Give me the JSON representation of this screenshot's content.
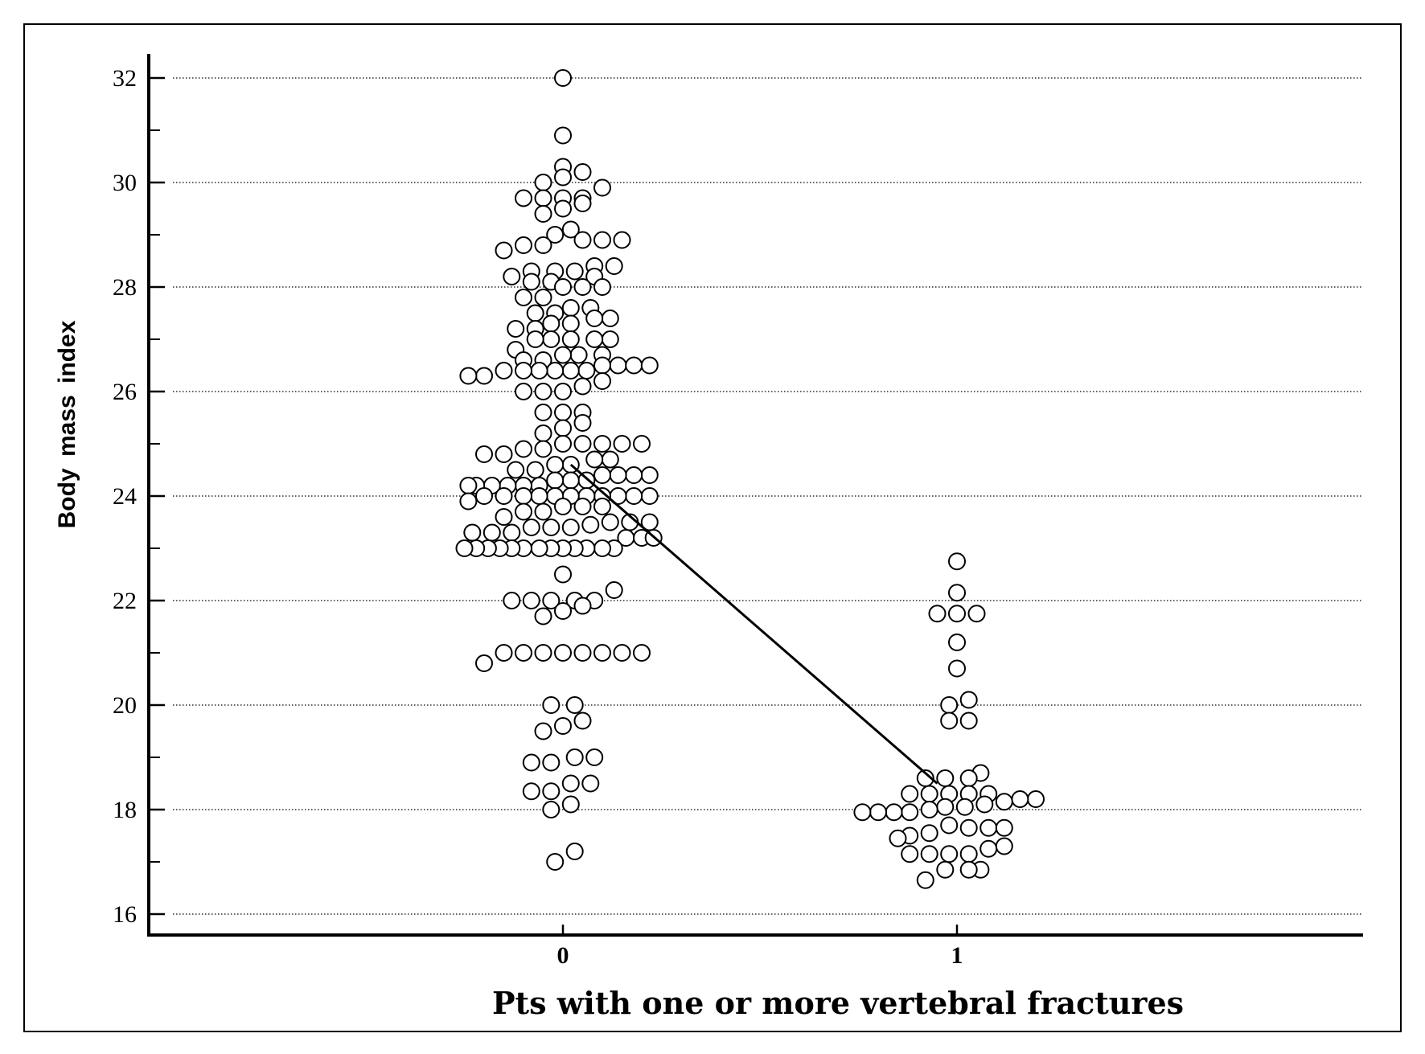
{
  "chart_data": {
    "type": "scatter",
    "title": "",
    "xlabel": "Pts with one or more vertebral fractures",
    "ylabel": "Body mass index",
    "categories": [
      "0",
      "1"
    ],
    "ylim": [
      16,
      32
    ],
    "y_ticks": [
      16,
      18,
      20,
      22,
      24,
      26,
      28,
      30,
      32
    ],
    "grid": "horizontal dotted",
    "series": [
      {
        "category": "0",
        "points": [
          {
            "x": 0,
            "y": 32.0
          },
          {
            "x": 0,
            "y": 30.9
          },
          {
            "x": 0,
            "y": 30.3
          },
          {
            "x": 0,
            "y": 30.1
          },
          {
            "x": 0.05,
            "y": 30.2
          },
          {
            "x": -0.05,
            "y": 30.0
          },
          {
            "x": 0.1,
            "y": 29.9
          },
          {
            "x": -0.1,
            "y": 29.7
          },
          {
            "x": -0.05,
            "y": 29.7
          },
          {
            "x": 0,
            "y": 29.7
          },
          {
            "x": 0.05,
            "y": 29.7
          },
          {
            "x": 0,
            "y": 29.5
          },
          {
            "x": 0.05,
            "y": 29.6
          },
          {
            "x": -0.05,
            "y": 29.4
          },
          {
            "x": 0.02,
            "y": 29.1
          },
          {
            "x": -0.02,
            "y": 29.0
          },
          {
            "x": 0.05,
            "y": 28.9
          },
          {
            "x": 0.1,
            "y": 28.9
          },
          {
            "x": 0.15,
            "y": 28.9
          },
          {
            "x": -0.1,
            "y": 28.8
          },
          {
            "x": -0.05,
            "y": 28.8
          },
          {
            "x": -0.15,
            "y": 28.7
          },
          {
            "x": 0.08,
            "y": 28.4
          },
          {
            "x": 0.13,
            "y": 28.4
          },
          {
            "x": -0.13,
            "y": 28.2
          },
          {
            "x": -0.08,
            "y": 28.3
          },
          {
            "x": -0.02,
            "y": 28.3
          },
          {
            "x": 0.03,
            "y": 28.3
          },
          {
            "x": 0.08,
            "y": 28.2
          },
          {
            "x": -0.08,
            "y": 28.1
          },
          {
            "x": -0.03,
            "y": 28.1
          },
          {
            "x": 0,
            "y": 28.0
          },
          {
            "x": 0.05,
            "y": 28.0
          },
          {
            "x": 0.1,
            "y": 28.0
          },
          {
            "x": -0.1,
            "y": 27.8
          },
          {
            "x": -0.05,
            "y": 27.8
          },
          {
            "x": 0.02,
            "y": 27.6
          },
          {
            "x": 0.07,
            "y": 27.6
          },
          {
            "x": -0.07,
            "y": 27.5
          },
          {
            "x": -0.02,
            "y": 27.5
          },
          {
            "x": 0.12,
            "y": 27.4
          },
          {
            "x": 0.08,
            "y": 27.4
          },
          {
            "x": 0.02,
            "y": 27.3
          },
          {
            "x": -0.03,
            "y": 27.3
          },
          {
            "x": -0.07,
            "y": 27.2
          },
          {
            "x": -0.12,
            "y": 27.2
          },
          {
            "x": 0.12,
            "y": 27.0
          },
          {
            "x": 0.08,
            "y": 27.0
          },
          {
            "x": 0.02,
            "y": 27.0
          },
          {
            "x": -0.03,
            "y": 27.0
          },
          {
            "x": -0.07,
            "y": 27.0
          },
          {
            "x": -0.12,
            "y": 26.8
          },
          {
            "x": 0.04,
            "y": 26.7
          },
          {
            "x": 0.1,
            "y": 26.7
          },
          {
            "x": 0,
            "y": 26.7
          },
          {
            "x": -0.05,
            "y": 26.6
          },
          {
            "x": -0.1,
            "y": 26.6
          },
          {
            "x": 0.14,
            "y": 26.5
          },
          {
            "x": 0.18,
            "y": 26.5
          },
          {
            "x": 0.22,
            "y": 26.5
          },
          {
            "x": 0.1,
            "y": 26.5
          },
          {
            "x": 0.06,
            "y": 26.4
          },
          {
            "x": 0.02,
            "y": 26.4
          },
          {
            "x": -0.02,
            "y": 26.4
          },
          {
            "x": -0.06,
            "y": 26.4
          },
          {
            "x": -0.1,
            "y": 26.4
          },
          {
            "x": -0.15,
            "y": 26.4
          },
          {
            "x": -0.2,
            "y": 26.3
          },
          {
            "x": -0.24,
            "y": 26.3
          },
          {
            "x": 0.1,
            "y": 26.2
          },
          {
            "x": 0.05,
            "y": 26.1
          },
          {
            "x": 0,
            "y": 26.0
          },
          {
            "x": -0.05,
            "y": 26.0
          },
          {
            "x": -0.1,
            "y": 26.0
          },
          {
            "x": -0.05,
            "y": 25.6
          },
          {
            "x": 0,
            "y": 25.6
          },
          {
            "x": 0.05,
            "y": 25.6
          },
          {
            "x": 0.05,
            "y": 25.4
          },
          {
            "x": 0,
            "y": 25.3
          },
          {
            "x": -0.05,
            "y": 25.2
          },
          {
            "x": 0.1,
            "y": 25.0
          },
          {
            "x": 0.15,
            "y": 25.0
          },
          {
            "x": 0.2,
            "y": 25.0
          },
          {
            "x": 0.05,
            "y": 25.0
          },
          {
            "x": 0,
            "y": 25.0
          },
          {
            "x": -0.05,
            "y": 24.9
          },
          {
            "x": -0.1,
            "y": 24.9
          },
          {
            "x": -0.15,
            "y": 24.8
          },
          {
            "x": -0.2,
            "y": 24.8
          },
          {
            "x": 0.12,
            "y": 24.7
          },
          {
            "x": 0.08,
            "y": 24.7
          },
          {
            "x": 0.02,
            "y": 24.6
          },
          {
            "x": -0.02,
            "y": 24.6
          },
          {
            "x": -0.07,
            "y": 24.5
          },
          {
            "x": -0.12,
            "y": 24.5
          },
          {
            "x": 0.22,
            "y": 24.4
          },
          {
            "x": 0.18,
            "y": 24.4
          },
          {
            "x": 0.14,
            "y": 24.4
          },
          {
            "x": 0.1,
            "y": 24.4
          },
          {
            "x": 0.06,
            "y": 24.3
          },
          {
            "x": 0.02,
            "y": 24.3
          },
          {
            "x": -0.02,
            "y": 24.3
          },
          {
            "x": -0.06,
            "y": 24.2
          },
          {
            "x": -0.1,
            "y": 24.2
          },
          {
            "x": -0.14,
            "y": 24.2
          },
          {
            "x": -0.18,
            "y": 24.2
          },
          {
            "x": -0.22,
            "y": 24.2
          },
          {
            "x": -0.24,
            "y": 24.2
          },
          {
            "x": 0.22,
            "y": 24.0
          },
          {
            "x": 0.18,
            "y": 24.0
          },
          {
            "x": 0.14,
            "y": 24.0
          },
          {
            "x": 0.1,
            "y": 24.0
          },
          {
            "x": 0.06,
            "y": 24.0
          },
          {
            "x": 0.02,
            "y": 24.0
          },
          {
            "x": -0.02,
            "y": 24.0
          },
          {
            "x": -0.06,
            "y": 24.0
          },
          {
            "x": -0.1,
            "y": 24.0
          },
          {
            "x": -0.15,
            "y": 24.0
          },
          {
            "x": -0.2,
            "y": 24.0
          },
          {
            "x": -0.24,
            "y": 23.9
          },
          {
            "x": 0.1,
            "y": 23.8
          },
          {
            "x": 0.05,
            "y": 23.8
          },
          {
            "x": 0,
            "y": 23.8
          },
          {
            "x": -0.05,
            "y": 23.7
          },
          {
            "x": -0.1,
            "y": 23.7
          },
          {
            "x": -0.15,
            "y": 23.6
          },
          {
            "x": 0.22,
            "y": 23.5
          },
          {
            "x": 0.17,
            "y": 23.5
          },
          {
            "x": 0.12,
            "y": 23.5
          },
          {
            "x": 0.07,
            "y": 23.45
          },
          {
            "x": 0.02,
            "y": 23.4
          },
          {
            "x": -0.03,
            "y": 23.4
          },
          {
            "x": -0.08,
            "y": 23.4
          },
          {
            "x": -0.13,
            "y": 23.3
          },
          {
            "x": -0.18,
            "y": 23.3
          },
          {
            "x": -0.23,
            "y": 23.3
          },
          {
            "x": 0.16,
            "y": 23.2
          },
          {
            "x": 0.2,
            "y": 23.2
          },
          {
            "x": 0.23,
            "y": 23.2
          },
          {
            "x": 0.13,
            "y": 23.0
          },
          {
            "x": 0.1,
            "y": 23.0
          },
          {
            "x": 0.06,
            "y": 23.0
          },
          {
            "x": 0.03,
            "y": 23.0
          },
          {
            "x": 0,
            "y": 23.0
          },
          {
            "x": -0.03,
            "y": 23.0
          },
          {
            "x": -0.06,
            "y": 23.0
          },
          {
            "x": -0.1,
            "y": 23.0
          },
          {
            "x": -0.13,
            "y": 23.0
          },
          {
            "x": -0.16,
            "y": 23.0
          },
          {
            "x": -0.19,
            "y": 23.0
          },
          {
            "x": -0.22,
            "y": 23.0
          },
          {
            "x": -0.25,
            "y": 23.0
          },
          {
            "x": 0,
            "y": 22.5
          },
          {
            "x": 0.13,
            "y": 22.2
          },
          {
            "x": -0.13,
            "y": 22.0
          },
          {
            "x": -0.08,
            "y": 22.0
          },
          {
            "x": -0.03,
            "y": 22.0
          },
          {
            "x": 0.03,
            "y": 22.0
          },
          {
            "x": 0.08,
            "y": 22.0
          },
          {
            "x": 0.05,
            "y": 21.9
          },
          {
            "x": 0,
            "y": 21.8
          },
          {
            "x": -0.05,
            "y": 21.7
          },
          {
            "x": -0.15,
            "y": 21.0
          },
          {
            "x": -0.1,
            "y": 21.0
          },
          {
            "x": -0.05,
            "y": 21.0
          },
          {
            "x": 0,
            "y": 21.0
          },
          {
            "x": 0.05,
            "y": 21.0
          },
          {
            "x": 0.1,
            "y": 21.0
          },
          {
            "x": 0.15,
            "y": 21.0
          },
          {
            "x": 0.2,
            "y": 21.0
          },
          {
            "x": -0.2,
            "y": 20.8
          },
          {
            "x": -0.03,
            "y": 20.0
          },
          {
            "x": 0.03,
            "y": 20.0
          },
          {
            "x": 0.05,
            "y": 19.7
          },
          {
            "x": 0,
            "y": 19.6
          },
          {
            "x": -0.05,
            "y": 19.5
          },
          {
            "x": -0.08,
            "y": 18.9
          },
          {
            "x": -0.03,
            "y": 18.9
          },
          {
            "x": 0.03,
            "y": 19.0
          },
          {
            "x": 0.08,
            "y": 19.0
          },
          {
            "x": 0.07,
            "y": 18.5
          },
          {
            "x": 0.02,
            "y": 18.5
          },
          {
            "x": -0.03,
            "y": 18.35
          },
          {
            "x": -0.08,
            "y": 18.35
          },
          {
            "x": 0.02,
            "y": 18.1
          },
          {
            "x": -0.03,
            "y": 18.0
          },
          {
            "x": 0.03,
            "y": 17.2
          },
          {
            "x": -0.02,
            "y": 17.0
          }
        ]
      },
      {
        "category": "1",
        "points": [
          {
            "x": 1,
            "y": 22.75
          },
          {
            "x": 1,
            "y": 22.15
          },
          {
            "x": 0.95,
            "y": 21.75
          },
          {
            "x": 1,
            "y": 21.75
          },
          {
            "x": 1.05,
            "y": 21.75
          },
          {
            "x": 1,
            "y": 21.2
          },
          {
            "x": 1,
            "y": 20.7
          },
          {
            "x": 1.03,
            "y": 20.1
          },
          {
            "x": 0.98,
            "y": 20.0
          },
          {
            "x": 0.98,
            "y": 19.7
          },
          {
            "x": 1.03,
            "y": 19.7
          },
          {
            "x": 1.06,
            "y": 18.7
          },
          {
            "x": 1.03,
            "y": 18.6
          },
          {
            "x": 0.97,
            "y": 18.6
          },
          {
            "x": 0.92,
            "y": 18.6
          },
          {
            "x": 1.08,
            "y": 18.3
          },
          {
            "x": 1.03,
            "y": 18.3
          },
          {
            "x": 0.98,
            "y": 18.3
          },
          {
            "x": 0.93,
            "y": 18.3
          },
          {
            "x": 0.88,
            "y": 18.3
          },
          {
            "x": 1.2,
            "y": 18.2
          },
          {
            "x": 1.16,
            "y": 18.2
          },
          {
            "x": 1.12,
            "y": 18.15
          },
          {
            "x": 1.07,
            "y": 18.1
          },
          {
            "x": 1.02,
            "y": 18.05
          },
          {
            "x": 0.97,
            "y": 18.05
          },
          {
            "x": 0.93,
            "y": 18.0
          },
          {
            "x": 0.88,
            "y": 17.95
          },
          {
            "x": 0.84,
            "y": 17.95
          },
          {
            "x": 0.8,
            "y": 17.95
          },
          {
            "x": 0.76,
            "y": 17.95
          },
          {
            "x": 0.98,
            "y": 17.7
          },
          {
            "x": 1.03,
            "y": 17.65
          },
          {
            "x": 1.08,
            "y": 17.65
          },
          {
            "x": 1.12,
            "y": 17.65
          },
          {
            "x": 0.93,
            "y": 17.55
          },
          {
            "x": 0.88,
            "y": 17.5
          },
          {
            "x": 0.85,
            "y": 17.45
          },
          {
            "x": 1.12,
            "y": 17.3
          },
          {
            "x": 1.08,
            "y": 17.25
          },
          {
            "x": 1.03,
            "y": 17.15
          },
          {
            "x": 0.98,
            "y": 17.15
          },
          {
            "x": 0.93,
            "y": 17.15
          },
          {
            "x": 0.88,
            "y": 17.15
          },
          {
            "x": 1.06,
            "y": 16.85
          },
          {
            "x": 1.03,
            "y": 16.85
          },
          {
            "x": 0.97,
            "y": 16.85
          },
          {
            "x": 0.92,
            "y": 16.65
          }
        ]
      }
    ],
    "trend_line": [
      {
        "x": 0.02,
        "y": 24.6
      },
      {
        "x": 0.95,
        "y": 18.5
      }
    ]
  }
}
